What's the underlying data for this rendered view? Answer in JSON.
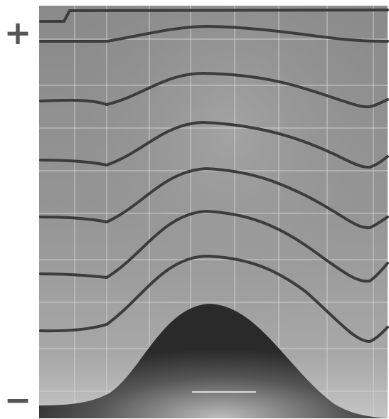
{
  "labels": {
    "plus": "+",
    "minus": "−"
  }
}
